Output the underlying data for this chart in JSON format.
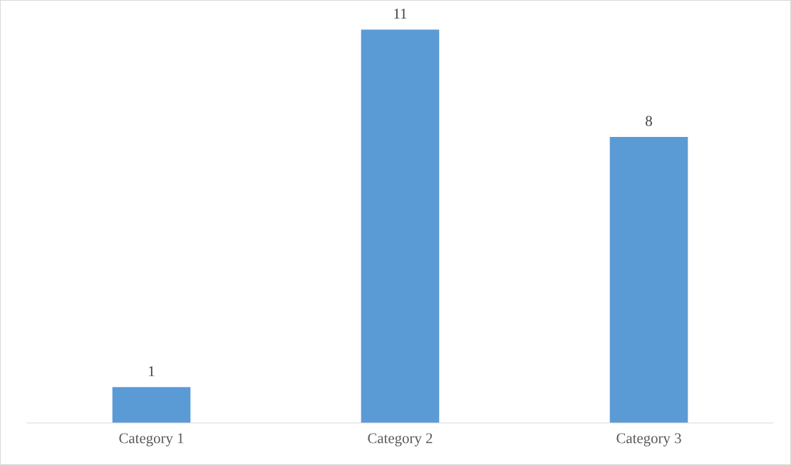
{
  "chart_data": {
    "type": "bar",
    "categories": [
      "Category 1",
      "Category 2",
      "Category 3"
    ],
    "values": [
      1,
      11,
      8
    ],
    "color": "#5b9bd5",
    "data_labels": true,
    "grid": false,
    "legend": false
  }
}
